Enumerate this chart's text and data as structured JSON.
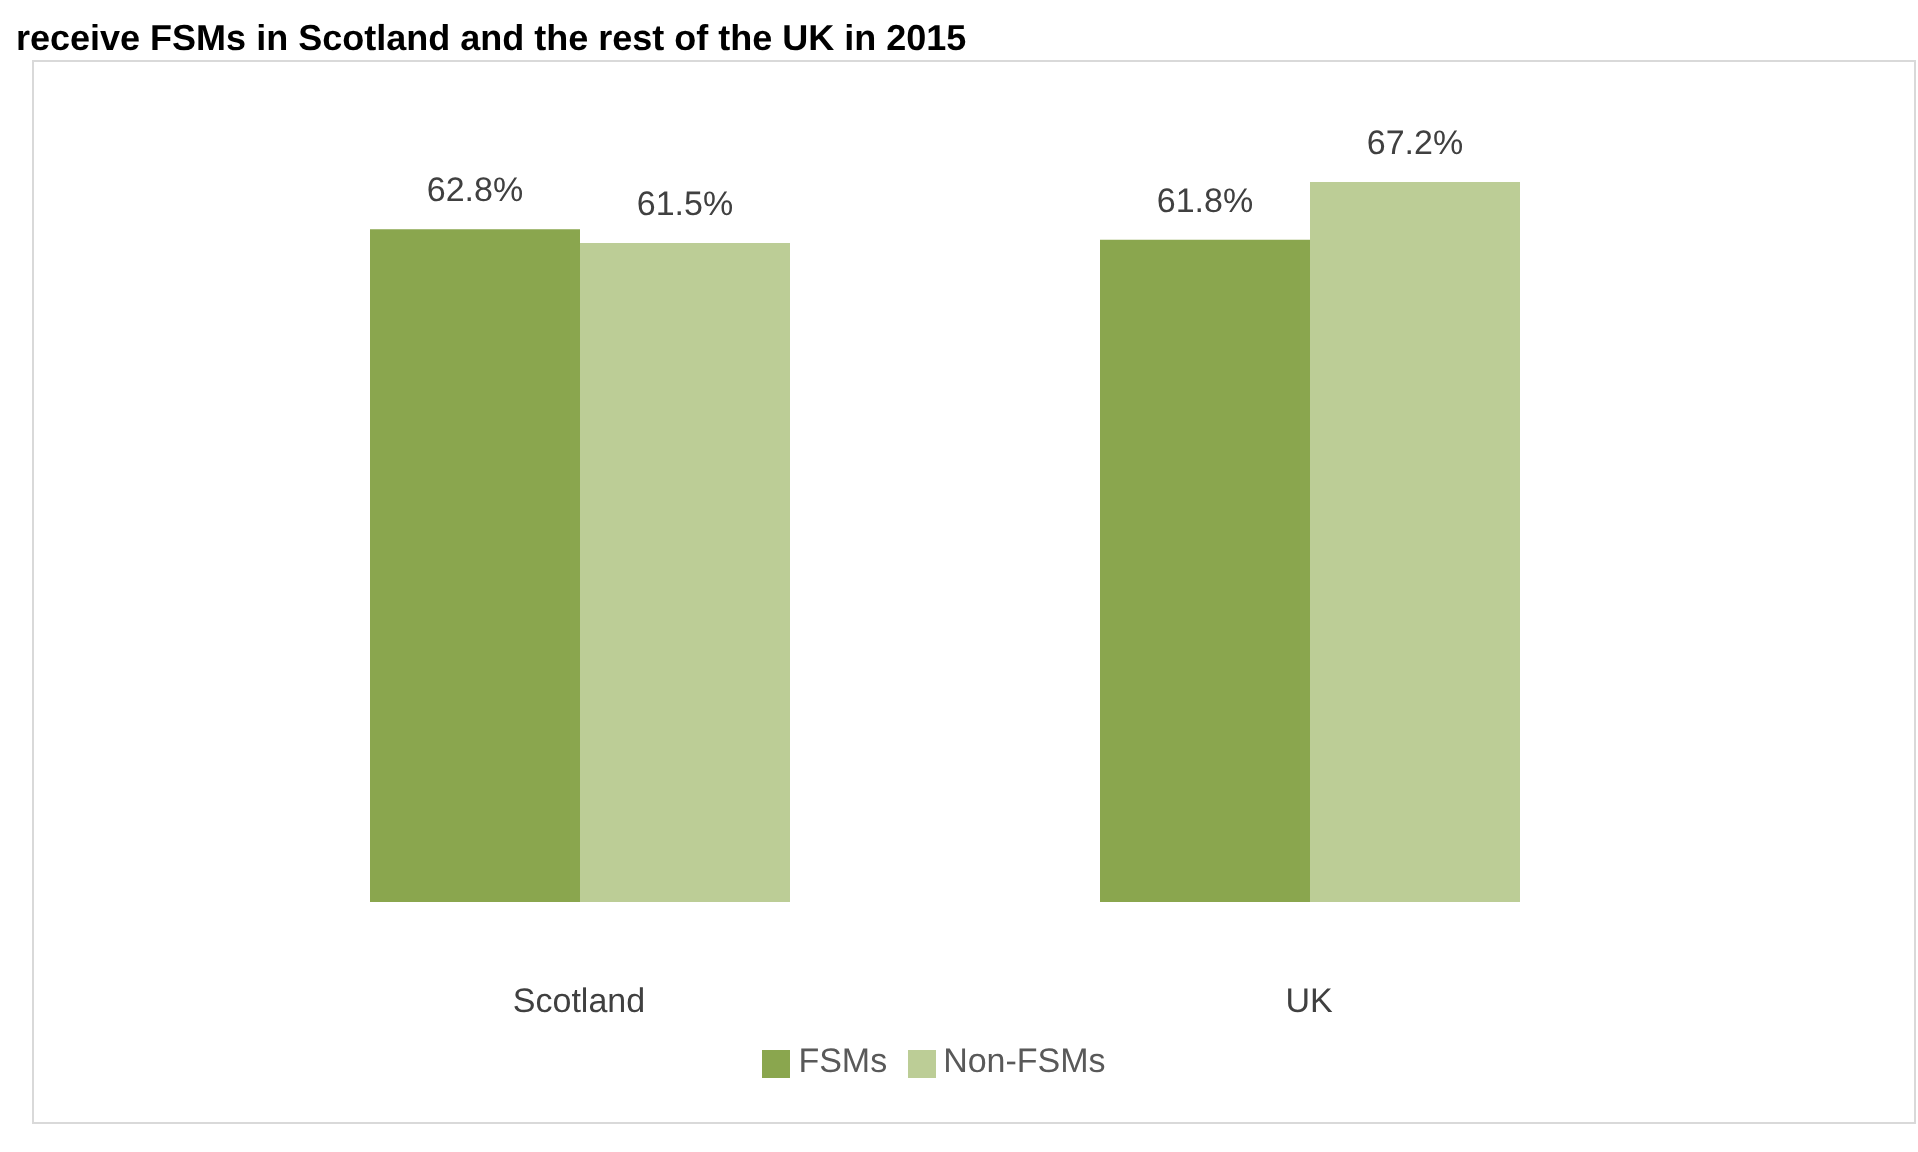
{
  "chart_data": {
    "type": "bar",
    "title": "receive FSMs in Scotland and the rest of the UK in 2015",
    "categories": [
      "Scotland",
      "UK"
    ],
    "series": [
      {
        "name": "FSMs",
        "color": "#8aa64e",
        "values": [
          62.8,
          61.8
        ],
        "value_labels": [
          "62.8%",
          "61.8%"
        ]
      },
      {
        "name": "Non-FSMs",
        "color": "#bccd96",
        "values": [
          61.5,
          67.2
        ],
        "value_labels": [
          "61.5%",
          "67.2%"
        ]
      }
    ],
    "legend": "bottom",
    "grid": false
  }
}
